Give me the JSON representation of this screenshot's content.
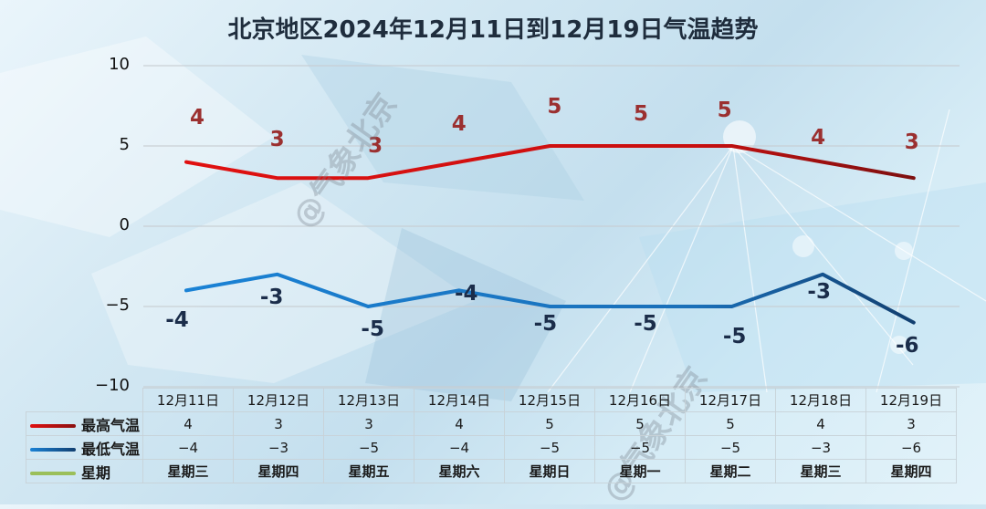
{
  "title": "北京地区2024年12月11日到12月19日气温趋势",
  "watermark": "@气象北京",
  "colors": {
    "high_line": "#d40f0f",
    "high_line_end": "#8b1010",
    "low_line": "#1a7fd0",
    "low_line_end": "#123f70",
    "weekday_swatch": "#9bbf5a",
    "high_label": "#9b3030",
    "low_label": "#1b2d4a"
  },
  "y_axis": {
    "ticks": [
      "10",
      "5",
      "0",
      "−5",
      "−10"
    ]
  },
  "chart_data": {
    "type": "line",
    "title": "北京地区2024年12月11日到12月19日气温趋势",
    "xlabel": "",
    "ylabel": "",
    "ylim": [
      -10,
      10
    ],
    "y_ticks": [
      10,
      5,
      0,
      -5,
      -10
    ],
    "grid": true,
    "legend_position": "bottom-left (data table)",
    "categories": [
      "12月11日",
      "12月12日",
      "12月13日",
      "12月14日",
      "12月15日",
      "12月16日",
      "12月17日",
      "12月18日",
      "12月19日"
    ],
    "series": [
      {
        "name": "最高气温",
        "values": [
          4,
          3,
          3,
          4,
          5,
          5,
          5,
          4,
          3
        ]
      },
      {
        "name": "最低气温",
        "values": [
          -4,
          -3,
          -5,
          -4,
          -5,
          -5,
          -5,
          -3,
          -6
        ]
      }
    ],
    "weekdays": [
      "星期三",
      "星期四",
      "星期五",
      "星期六",
      "星期日",
      "星期一",
      "星期二",
      "星期三",
      "星期四"
    ]
  },
  "labels": {
    "high": [
      "4",
      "3",
      "3",
      "4",
      "5",
      "5",
      "5",
      "4",
      "3"
    ],
    "low": [
      "-4",
      "-3",
      "-5",
      "-4",
      "-5",
      "-5",
      "-5",
      "-3",
      "-6"
    ]
  },
  "table": {
    "dates": [
      "12月11日",
      "12月12日",
      "12月13日",
      "12月14日",
      "12月15日",
      "12月16日",
      "12月17日",
      "12月18日",
      "12月19日"
    ],
    "rows": [
      {
        "legend": "最高气温",
        "values": [
          "4",
          "3",
          "3",
          "4",
          "5",
          "5",
          "5",
          "4",
          "3"
        ]
      },
      {
        "legend": "最低气温",
        "values": [
          "−4",
          "−3",
          "−5",
          "−4",
          "−5",
          "−5",
          "−5",
          "−3",
          "−6"
        ]
      },
      {
        "legend": "星期",
        "values": [
          "星期三",
          "星期四",
          "星期五",
          "星期六",
          "星期日",
          "星期一",
          "星期二",
          "星期三",
          "星期四"
        ]
      }
    ]
  }
}
